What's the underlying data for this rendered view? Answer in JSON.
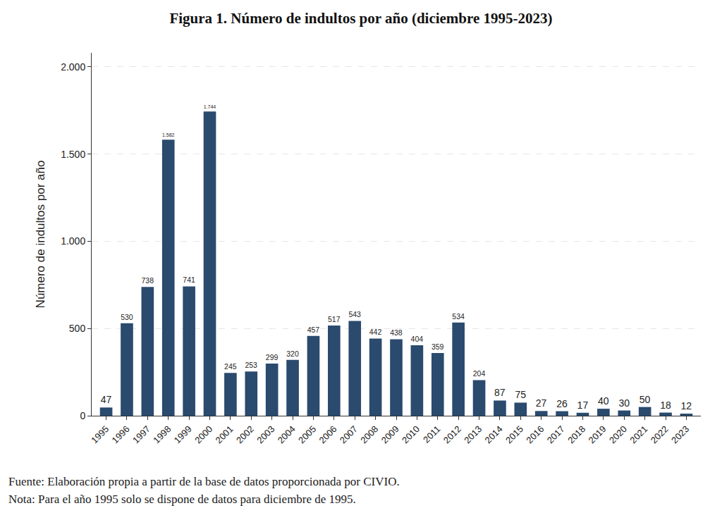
{
  "chart_data": {
    "type": "bar",
    "title": "Figura 1. Número de indultos por año (diciembre 1995-2023)",
    "y_label": "Número de indultos por año",
    "categories": [
      "1995",
      "1996",
      "1997",
      "1998",
      "1999",
      "2000",
      "2001",
      "2002",
      "2003",
      "2004",
      "2005",
      "2006",
      "2007",
      "2008",
      "2009",
      "2010",
      "2011",
      "2012",
      "2013",
      "2014",
      "2015",
      "2016",
      "2017",
      "2018",
      "2019",
      "2020",
      "2021",
      "2022",
      "2023"
    ],
    "values": [
      47,
      530,
      738,
      1582,
      741,
      1744,
      245,
      253,
      299,
      320,
      457,
      517,
      543,
      442,
      438,
      404,
      359,
      534,
      204,
      87,
      75,
      27,
      26,
      17,
      40,
      30,
      50,
      18,
      12
    ],
    "value_labels": [
      "47",
      "530",
      "738",
      "1.582",
      "741",
      "1.744",
      "245",
      "253",
      "299",
      "320",
      "457",
      "517",
      "543",
      "442",
      "438",
      "404",
      "359",
      "534",
      "204",
      "87",
      "75",
      "27",
      "26",
      "17",
      "40",
      "30",
      "50",
      "18",
      "12"
    ],
    "color": "#2a4a6e",
    "ylim": [
      0,
      2080
    ],
    "yticks": [
      0,
      500,
      {
        "value": 1000,
        "label": "1.000"
      },
      {
        "value": 1500,
        "label": "1.500"
      },
      {
        "value": 2000,
        "label": "2.000"
      }
    ],
    "grid": true,
    "data_labels": true,
    "annotations": [
      "Fuente: Elaboración propia a partir de la base de datos proporcionada por CIVIO.",
      "Nota: Para el año 1995 solo se dispone de datos para diciembre de 1995."
    ]
  }
}
